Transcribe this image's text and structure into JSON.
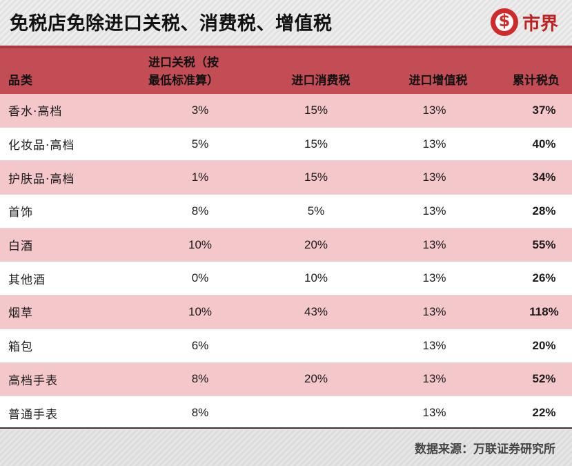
{
  "header": {
    "title": "免税店免除进口关税、消费税、增值税",
    "brand_text": "市界",
    "brand_color": "#c01f1f"
  },
  "table": {
    "columns": [
      "品类",
      "进口关税（按最低标准算）",
      "进口消费税",
      "进口增值税",
      "累计税负"
    ],
    "col1_line1": "进口关税（按",
    "col1_line2": "最低标准算）",
    "rows": [
      {
        "category": "香水·高档",
        "tariff": "3%",
        "consumption": "15%",
        "vat": "13%",
        "total": "37%"
      },
      {
        "category": "化妆品·高档",
        "tariff": "5%",
        "consumption": "15%",
        "vat": "13%",
        "total": "40%"
      },
      {
        "category": "护肤品·高档",
        "tariff": "1%",
        "consumption": "15%",
        "vat": "13%",
        "total": "34%"
      },
      {
        "category": "首饰",
        "tariff": "8%",
        "consumption": "5%",
        "vat": "13%",
        "total": "28%"
      },
      {
        "category": "白酒",
        "tariff": "10%",
        "consumption": "20%",
        "vat": "13%",
        "total": "55%"
      },
      {
        "category": "其他酒",
        "tariff": "0%",
        "consumption": "10%",
        "vat": "13%",
        "total": "26%"
      },
      {
        "category": "烟草",
        "tariff": "10%",
        "consumption": "43%",
        "vat": "13%",
        "total": "118%"
      },
      {
        "category": "箱包",
        "tariff": "6%",
        "consumption": "",
        "vat": "13%",
        "total": "20%"
      },
      {
        "category": "高档手表",
        "tariff": "8%",
        "consumption": "20%",
        "vat": "13%",
        "total": "52%"
      },
      {
        "category": "普通手表",
        "tariff": "8%",
        "consumption": "",
        "vat": "13%",
        "total": "22%"
      }
    ],
    "header_color": "#c24d55",
    "stripe_color": "#f4c7cb"
  },
  "footer": {
    "source": "数据来源：万联证券研究所"
  }
}
